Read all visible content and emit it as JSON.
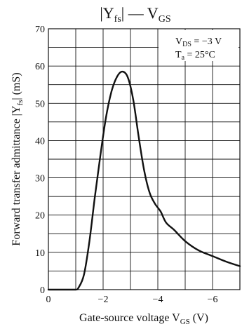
{
  "chart_data": {
    "type": "line",
    "title": {
      "main": "|Y",
      "sub": "fs",
      "after": "| — V",
      "sub2": "GS"
    },
    "xlabel": {
      "main": "Gate-source voltage  V",
      "sub": "GS",
      "unit": "  (V)"
    },
    "ylabel": {
      "main": "Forward transfer admittance |Y",
      "sub": "fs",
      "unit": "| (mS)"
    },
    "xlim": [
      0,
      -7
    ],
    "ylim": [
      0,
      70
    ],
    "x_ticks": [
      0,
      -2,
      -4,
      -6
    ],
    "x_tick_labels": [
      "0",
      "−2",
      "−4",
      "−6"
    ],
    "y_ticks": [
      0,
      10,
      20,
      30,
      40,
      50,
      60,
      70
    ],
    "y_tick_labels": [
      "0",
      "10",
      "20",
      "30",
      "40",
      "50",
      "60",
      "70"
    ],
    "grid": true,
    "conditions": [
      {
        "main": "V",
        "sub": "DS",
        "value": " = −3 V"
      },
      {
        "main": "T",
        "sub": "a",
        "value": " = 25°C"
      }
    ],
    "series": [
      {
        "x": [
          0,
          -0.5,
          -1.0,
          -1.1,
          -1.3,
          -1.5,
          -1.7,
          -1.9,
          -2.1,
          -2.3,
          -2.5,
          -2.7,
          -2.9,
          -3.1,
          -3.3,
          -3.5,
          -3.7,
          -3.9,
          -4.1,
          -4.3,
          -4.6,
          -5.0,
          -5.5,
          -6.0,
          -6.5,
          -7.0
        ],
        "y": [
          0,
          0,
          0,
          0.5,
          4,
          13,
          25,
          36,
          46,
          53,
          57,
          58.5,
          57,
          51,
          41,
          32,
          26,
          23,
          21,
          18,
          16,
          13,
          10.5,
          9,
          7.5,
          6.3
        ]
      }
    ]
  }
}
